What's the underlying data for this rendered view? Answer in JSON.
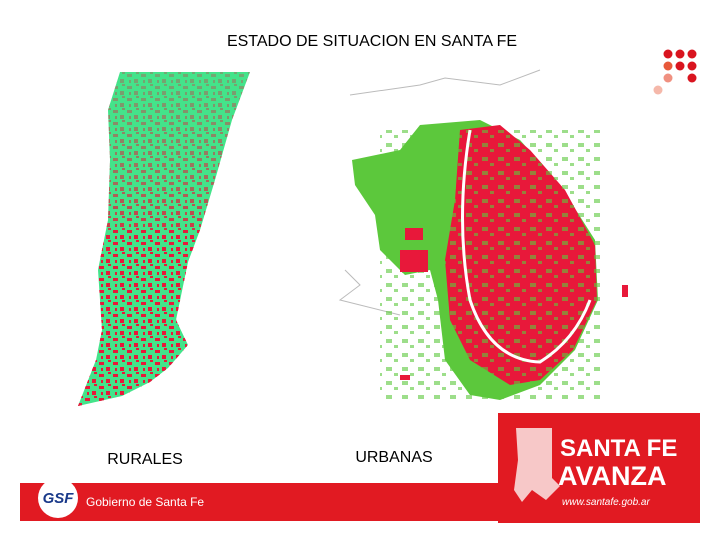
{
  "header": {
    "title": "ESTADO DE SITUACION EN SANTA FE"
  },
  "maps": [
    {
      "label": "RURALES"
    },
    {
      "label": "URBANAS"
    }
  ],
  "logo": {
    "line1": "SANTA FE",
    "line2": "AVANZA",
    "url": "www.santafe.gob.ar"
  },
  "footer": {
    "badge": "GSF",
    "text": "Gobierno de Santa Fe"
  }
}
